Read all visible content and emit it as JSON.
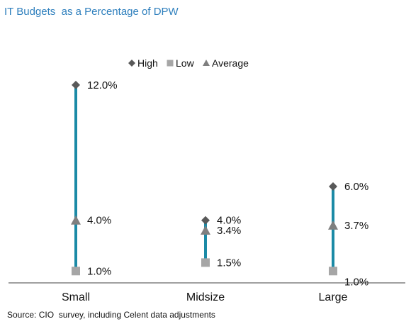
{
  "chart_data": {
    "type": "high-low",
    "title": "IT Budgets  as a Percentage of DPW",
    "source": "Source: CIO  survey, including Celent data adjustments",
    "categories": [
      "Small",
      "Midsize",
      "Large"
    ],
    "series": [
      {
        "name": "High",
        "marker": "diamond",
        "color": "#595959",
        "values": [
          12.0,
          4.0,
          6.0
        ]
      },
      {
        "name": "Low",
        "marker": "square",
        "color": "#a6a6a6",
        "values": [
          1.0,
          1.5,
          1.0
        ]
      },
      {
        "name": "Average",
        "marker": "triangle",
        "color": "#7f7f7f",
        "values": [
          4.0,
          3.4,
          3.7
        ]
      }
    ],
    "data_labels": {
      "High": [
        "12.0%",
        "4.0%",
        "6.0%"
      ],
      "Low": [
        "1.0%",
        "1.5%",
        "1.0%"
      ],
      "Average": [
        "4.0%",
        "3.4%",
        "3.7%"
      ]
    },
    "ylim": [
      0.3,
      12.5
    ],
    "line_color": "#1b8aa6",
    "legend_position": "top-center",
    "grid": false
  }
}
